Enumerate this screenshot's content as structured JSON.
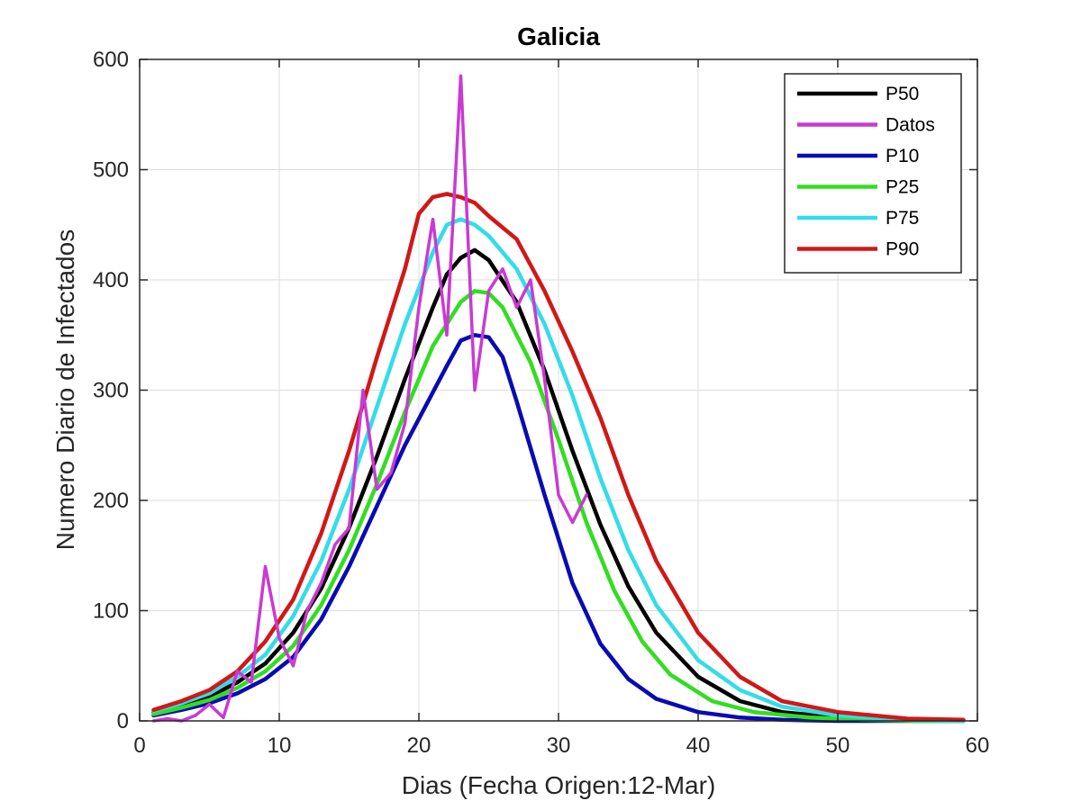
{
  "chart_data": {
    "type": "line",
    "title": "Galicia",
    "xlabel": "Dias (Fecha Origen:12-Mar)",
    "ylabel": "Numero Diario de Infectados",
    "xlim": [
      0,
      60
    ],
    "ylim": [
      0,
      600
    ],
    "xticks": [
      "0",
      "10",
      "20",
      "30",
      "40",
      "50",
      "60"
    ],
    "yticks": [
      "0",
      "100",
      "200",
      "300",
      "400",
      "500",
      "600"
    ],
    "grid": true,
    "legend_position": "top-right",
    "series": [
      {
        "name": "P50",
        "color": "#000000",
        "x": [
          1,
          3,
          5,
          7,
          9,
          11,
          13,
          15,
          17,
          19,
          21,
          22,
          23,
          24,
          25,
          27,
          29,
          31,
          33,
          35,
          37,
          40,
          43,
          46,
          50,
          55,
          59
        ],
        "y": [
          8,
          14,
          22,
          35,
          52,
          80,
          120,
          175,
          240,
          310,
          375,
          405,
          420,
          427,
          418,
          380,
          318,
          245,
          178,
          122,
          80,
          40,
          18,
          8,
          3,
          1,
          0
        ]
      },
      {
        "name": "Datos",
        "color": "#c93ad4",
        "x": [
          1,
          2,
          3,
          4,
          5,
          6,
          7,
          8,
          9,
          10,
          11,
          12,
          13,
          14,
          15,
          16,
          17,
          18,
          19,
          20,
          21,
          22,
          23,
          24,
          25,
          26,
          27,
          28,
          29,
          30,
          31,
          32
        ],
        "y": [
          0,
          2,
          0,
          5,
          15,
          3,
          45,
          35,
          140,
          75,
          50,
          100,
          125,
          160,
          175,
          300,
          210,
          225,
          270,
          375,
          455,
          350,
          585,
          300,
          390,
          410,
          375,
          400,
          310,
          205,
          180,
          205
        ]
      },
      {
        "name": "P10",
        "color": "#0a0ab4",
        "x": [
          1,
          3,
          5,
          7,
          9,
          11,
          13,
          15,
          17,
          19,
          21,
          22,
          23,
          24,
          25,
          26,
          27,
          29,
          31,
          33,
          35,
          37,
          40,
          43,
          46,
          50,
          55,
          59
        ],
        "y": [
          5,
          10,
          16,
          25,
          38,
          58,
          92,
          140,
          195,
          250,
          298,
          322,
          345,
          350,
          348,
          330,
          290,
          205,
          125,
          70,
          38,
          20,
          8,
          3,
          1,
          0,
          0,
          0
        ]
      },
      {
        "name": "P25",
        "color": "#33dd22",
        "x": [
          1,
          3,
          5,
          7,
          9,
          11,
          13,
          15,
          17,
          19,
          21,
          23,
          24,
          25,
          26,
          28,
          30,
          32,
          34,
          36,
          38,
          41,
          44,
          48,
          52,
          56,
          59
        ],
        "y": [
          6,
          12,
          19,
          30,
          45,
          68,
          105,
          155,
          215,
          280,
          340,
          380,
          390,
          388,
          375,
          325,
          255,
          180,
          118,
          72,
          42,
          18,
          8,
          3,
          1,
          0,
          0
        ]
      },
      {
        "name": "P75",
        "color": "#33dde8",
        "x": [
          1,
          3,
          5,
          7,
          9,
          11,
          13,
          15,
          17,
          19,
          21,
          22,
          23,
          24,
          25,
          27,
          29,
          31,
          33,
          35,
          37,
          40,
          43,
          46,
          50,
          55,
          59
        ],
        "y": [
          9,
          16,
          25,
          40,
          60,
          95,
          145,
          210,
          285,
          360,
          425,
          450,
          455,
          450,
          440,
          410,
          360,
          295,
          220,
          155,
          105,
          55,
          28,
          13,
          5,
          1,
          0
        ]
      },
      {
        "name": "P90",
        "color": "#d01818",
        "x": [
          1,
          3,
          5,
          7,
          9,
          11,
          13,
          15,
          17,
          19,
          20,
          21,
          22,
          23,
          24,
          25,
          27,
          29,
          31,
          33,
          35,
          37,
          40,
          43,
          46,
          50,
          55,
          59
        ],
        "y": [
          10,
          18,
          28,
          45,
          72,
          110,
          170,
          245,
          330,
          410,
          460,
          475,
          478,
          475,
          470,
          458,
          437,
          390,
          335,
          275,
          205,
          145,
          80,
          40,
          18,
          8,
          2,
          1
        ]
      }
    ]
  }
}
